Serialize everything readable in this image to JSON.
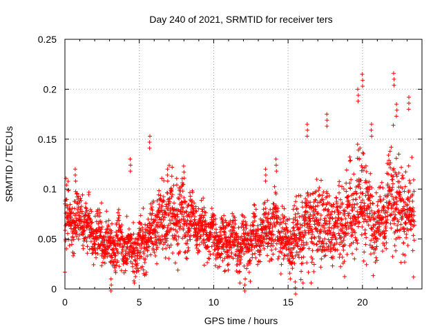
{
  "chart_data": {
    "type": "scatter",
    "title": "Day 240 of 2021, SRMTID for receiver ters",
    "xlabel": "GPS time / hours",
    "ylabel": "SRMTID / TECUs",
    "xlim": [
      0,
      24
    ],
    "ylim": [
      0,
      0.25
    ],
    "x_ticks": [
      0,
      5,
      10,
      15,
      20
    ],
    "x_tick_labels": [
      "0",
      "5",
      "10",
      "15",
      "20"
    ],
    "y_ticks": [
      0,
      0.05,
      0.1,
      0.15,
      0.2,
      0.25
    ],
    "y_tick_labels": [
      "0",
      "0.05",
      "0.1",
      "0.15",
      "0.2",
      "0.25"
    ],
    "grid": true,
    "marker": "+",
    "series": [
      {
        "name": "SRMTID",
        "color": "#ff0000",
        "note": "approx. 2800 samples; values summarized by hourly envelope (median, spread) plus notable peaks",
        "hourly_median": [
          0.065,
          0.075,
          0.055,
          0.045,
          0.045,
          0.04,
          0.06,
          0.075,
          0.07,
          0.06,
          0.05,
          0.048,
          0.045,
          0.05,
          0.065,
          0.045,
          0.06,
          0.07,
          0.055,
          0.075,
          0.09,
          0.06,
          0.09,
          0.075
        ],
        "hourly_spread": [
          0.025,
          0.02,
          0.02,
          0.02,
          0.02,
          0.02,
          0.025,
          0.03,
          0.025,
          0.02,
          0.02,
          0.02,
          0.02,
          0.02,
          0.025,
          0.02,
          0.035,
          0.035,
          0.025,
          0.035,
          0.04,
          0.025,
          0.04,
          0.035
        ],
        "peaks": [
          {
            "x": 0.7,
            "y": 0.12
          },
          {
            "x": 4.4,
            "y": 0.13
          },
          {
            "x": 5.7,
            "y": 0.153
          },
          {
            "x": 6.9,
            "y": 0.12
          },
          {
            "x": 8.0,
            "y": 0.123
          },
          {
            "x": 13.5,
            "y": 0.12
          },
          {
            "x": 14.2,
            "y": 0.13
          },
          {
            "x": 15.5,
            "y": 0.007
          },
          {
            "x": 16.3,
            "y": 0.165
          },
          {
            "x": 17.6,
            "y": 0.175
          },
          {
            "x": 19.7,
            "y": 0.2
          },
          {
            "x": 20.0,
            "y": 0.215
          },
          {
            "x": 20.6,
            "y": 0.165
          },
          {
            "x": 22.1,
            "y": 0.216
          },
          {
            "x": 22.3,
            "y": 0.185
          },
          {
            "x": 23.1,
            "y": 0.192
          },
          {
            "x": 12.1,
            "y": 0.01
          },
          {
            "x": 3.1,
            "y": 0.01
          }
        ]
      }
    ]
  }
}
